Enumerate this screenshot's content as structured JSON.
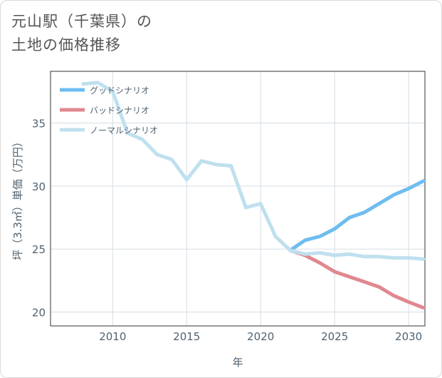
{
  "title_line1": "元山駅（千葉県）の",
  "title_line2": "土地の価格推移",
  "chart_data": {
    "type": "line",
    "title": "元山駅（千葉県）の土地の価格推移",
    "xlabel": "年",
    "ylabel": "坪（3.3㎡）単価（万円）",
    "xlim": [
      2005.8,
      2031.1
    ],
    "ylim": [
      18.9,
      39.1
    ],
    "xticks": [
      2010,
      2015,
      2020,
      2025,
      2030
    ],
    "yticks": [
      20,
      25,
      30,
      35
    ],
    "legend_position": "top-left",
    "series": [
      {
        "name": "グッドシナリオ",
        "color": "#6fbdf0",
        "x": [
          2022,
          2023,
          2024,
          2025,
          2026,
          2027,
          2028,
          2029,
          2030,
          2031
        ],
        "y": [
          24.9,
          25.7,
          26.0,
          26.6,
          27.5,
          27.9,
          28.6,
          29.3,
          29.8,
          30.4
        ]
      },
      {
        "name": "バッドシナリオ",
        "color": "#e0888f",
        "x": [
          2022,
          2023,
          2024,
          2025,
          2026,
          2027,
          2028,
          2029,
          2030,
          2031
        ],
        "y": [
          24.9,
          24.5,
          23.9,
          23.2,
          22.8,
          22.4,
          22.0,
          21.3,
          20.8,
          20.35
        ]
      },
      {
        "name": "ノーマルシナリオ",
        "color": "#bfe0ee",
        "x": [
          2008,
          2009,
          2010,
          2011,
          2012,
          2013,
          2014,
          2015,
          2016,
          2017,
          2018,
          2019,
          2020,
          2021,
          2022,
          2023,
          2024,
          2025,
          2026,
          2027,
          2028,
          2029,
          2030,
          2031
        ],
        "y": [
          38.1,
          38.2,
          37.5,
          34.2,
          33.7,
          32.5,
          32.1,
          30.5,
          32.0,
          31.7,
          31.6,
          28.3,
          28.6,
          26.0,
          24.9,
          24.6,
          24.7,
          24.5,
          24.6,
          24.4,
          24.4,
          24.3,
          24.3,
          24.2
        ]
      }
    ]
  }
}
